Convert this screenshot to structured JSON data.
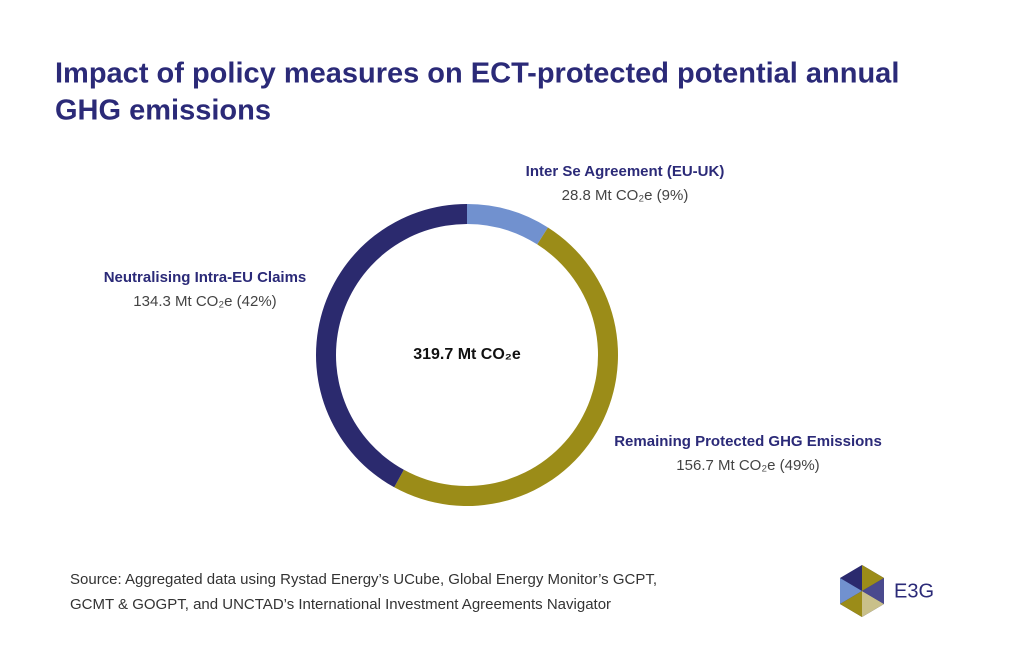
{
  "chart_data": {
    "type": "donut",
    "title": [
      "Impact of policy measures on ECT-protected potential annual",
      "GHG emissions"
    ],
    "categories": [
      "Inter Se Agreement (EU-UK)",
      "Remaining Protected GHG Emissions",
      "Neutralising Intra-EU Claims"
    ],
    "values": [
      28.8,
      156.7,
      134.3
    ],
    "value_labels": [
      "28.8 Mt CO₂e (9%)",
      "156.7 Mt CO₂e (49%)",
      "134.3 Mt CO₂e (42%)"
    ],
    "colors": [
      "#7191cf",
      "#9b8c18",
      "#2b2a6e"
    ],
    "center_label": "319.7 Mt CO₂e",
    "source": [
      "Source: Aggregated data using Rystad Energy’s UCube, Global Energy Monitor’s GCPT,",
      "GCMT & GOGPT, and UNCTAD’s International Investment Agreements Navigator"
    ],
    "logo": "E3G"
  }
}
